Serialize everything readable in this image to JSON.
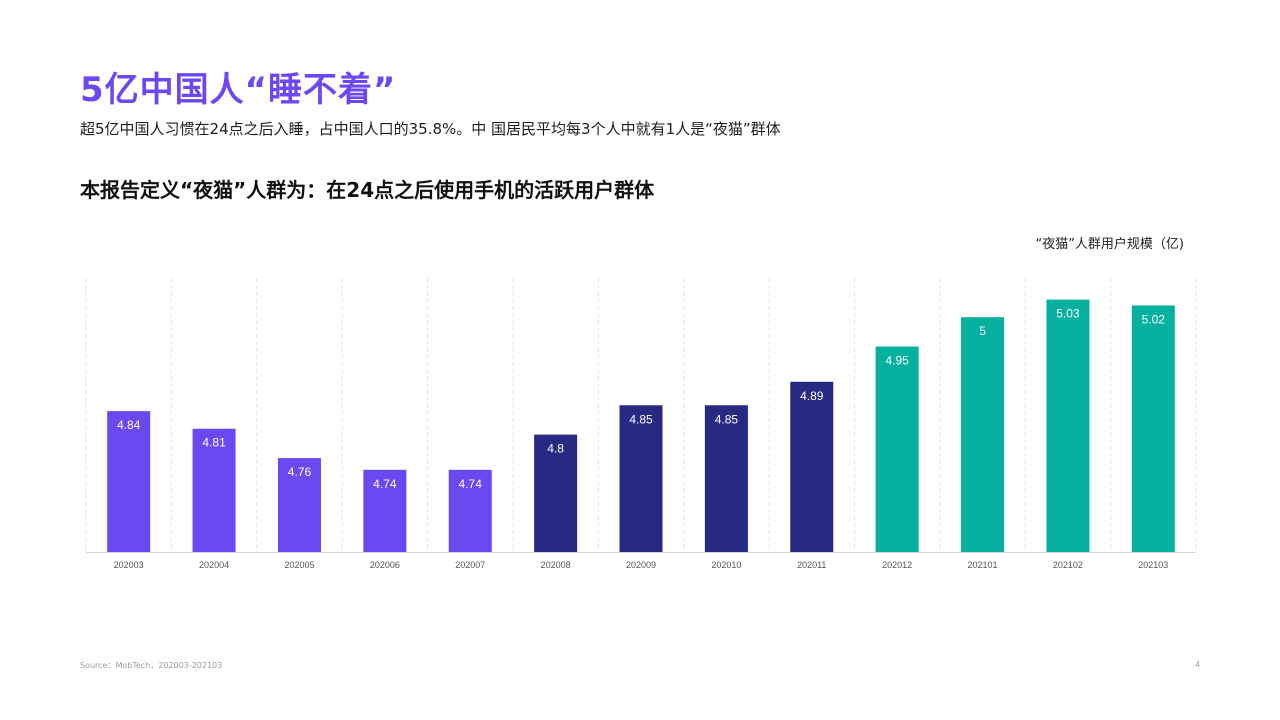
{
  "header": {
    "title": "5亿中国人“睡不着”",
    "subtitle": "超5亿中国人习惯在24点之后入睡，占中国人口的35.8%。中 国居民平均每3个人中就有1人是“夜猫”群体",
    "heading": "本报告定义“夜猫”人群为：在24点之后使用手机的活跃用户群体"
  },
  "chart_data": {
    "type": "bar",
    "caption": "“夜猫”人群用户规模（亿)",
    "categories": [
      "202003",
      "202004",
      "202005",
      "202006",
      "202007",
      "202008",
      "202009",
      "202010",
      "202011",
      "202012",
      "202101",
      "202102",
      "202103"
    ],
    "values": [
      4.84,
      4.81,
      4.76,
      4.74,
      4.74,
      4.8,
      4.85,
      4.85,
      4.89,
      4.95,
      5,
      5.03,
      5.02
    ],
    "value_labels": [
      "4.84",
      "4.81",
      "4.76",
      "4.74",
      "4.74",
      "4.8",
      "4.85",
      "4.85",
      "4.89",
      "4.95",
      "5",
      "5.03",
      "5.02"
    ],
    "bar_colors": [
      "#6a4af0",
      "#6a4af0",
      "#6a4af0",
      "#6a4af0",
      "#6a4af0",
      "#272a82",
      "#272a82",
      "#272a82",
      "#272a82",
      "#05b09e",
      "#05b09e",
      "#05b09e",
      "#05b09e"
    ],
    "ylim": [
      4.6,
      5.06
    ],
    "grid": "vertical-dashed",
    "legend": "none"
  },
  "footer": {
    "source": "Source：MobTech，202003-202103",
    "page": "4"
  }
}
